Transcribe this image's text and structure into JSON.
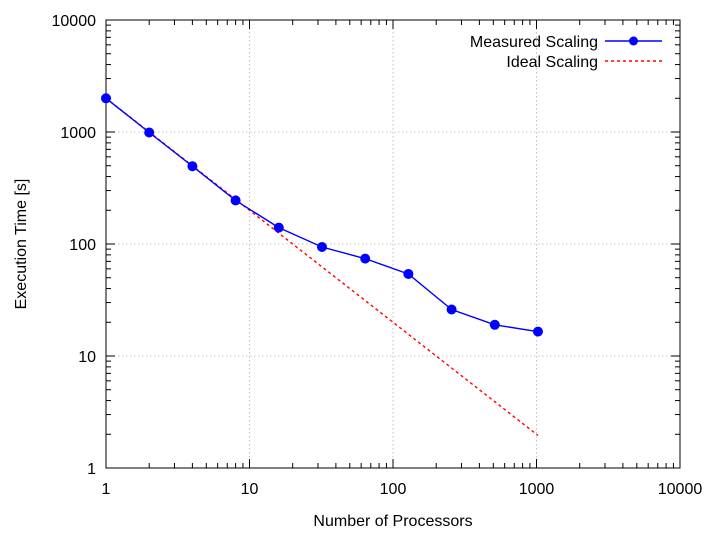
{
  "chart_data": {
    "type": "line",
    "xlabel": "Number of Processors",
    "ylabel": "Execution Time [s]",
    "xscale": "log",
    "yscale": "log",
    "xlim": [
      1,
      10000
    ],
    "ylim": [
      1,
      10000
    ],
    "xticks": [
      1,
      10,
      100,
      1000,
      10000
    ],
    "yticks": [
      1,
      10,
      100,
      1000,
      10000
    ],
    "xtick_labels": [
      "1",
      "10",
      "100",
      "1000",
      "10000"
    ],
    "ytick_labels": [
      "1",
      "10",
      "100",
      "1000",
      "10000"
    ],
    "grid": true,
    "legend_position": "top-right",
    "series": [
      {
        "name": "Measured Scaling",
        "color": "#0000ff",
        "style": "line-with-markers",
        "x": [
          1,
          2,
          4,
          8,
          16,
          32,
          64,
          128,
          256,
          512,
          1024
        ],
        "y": [
          2000,
          990,
          495,
          245,
          140,
          94,
          74,
          54,
          26,
          19,
          16.5
        ]
      },
      {
        "name": "Ideal Scaling",
        "color": "#ff0000",
        "style": "dashed",
        "x": [
          1,
          2,
          4,
          8,
          16,
          32,
          64,
          128,
          256,
          512,
          1024
        ],
        "y": [
          2000,
          1000,
          500,
          250,
          125,
          62.5,
          31.25,
          15.625,
          7.8125,
          3.90625,
          1.953125
        ]
      }
    ]
  }
}
